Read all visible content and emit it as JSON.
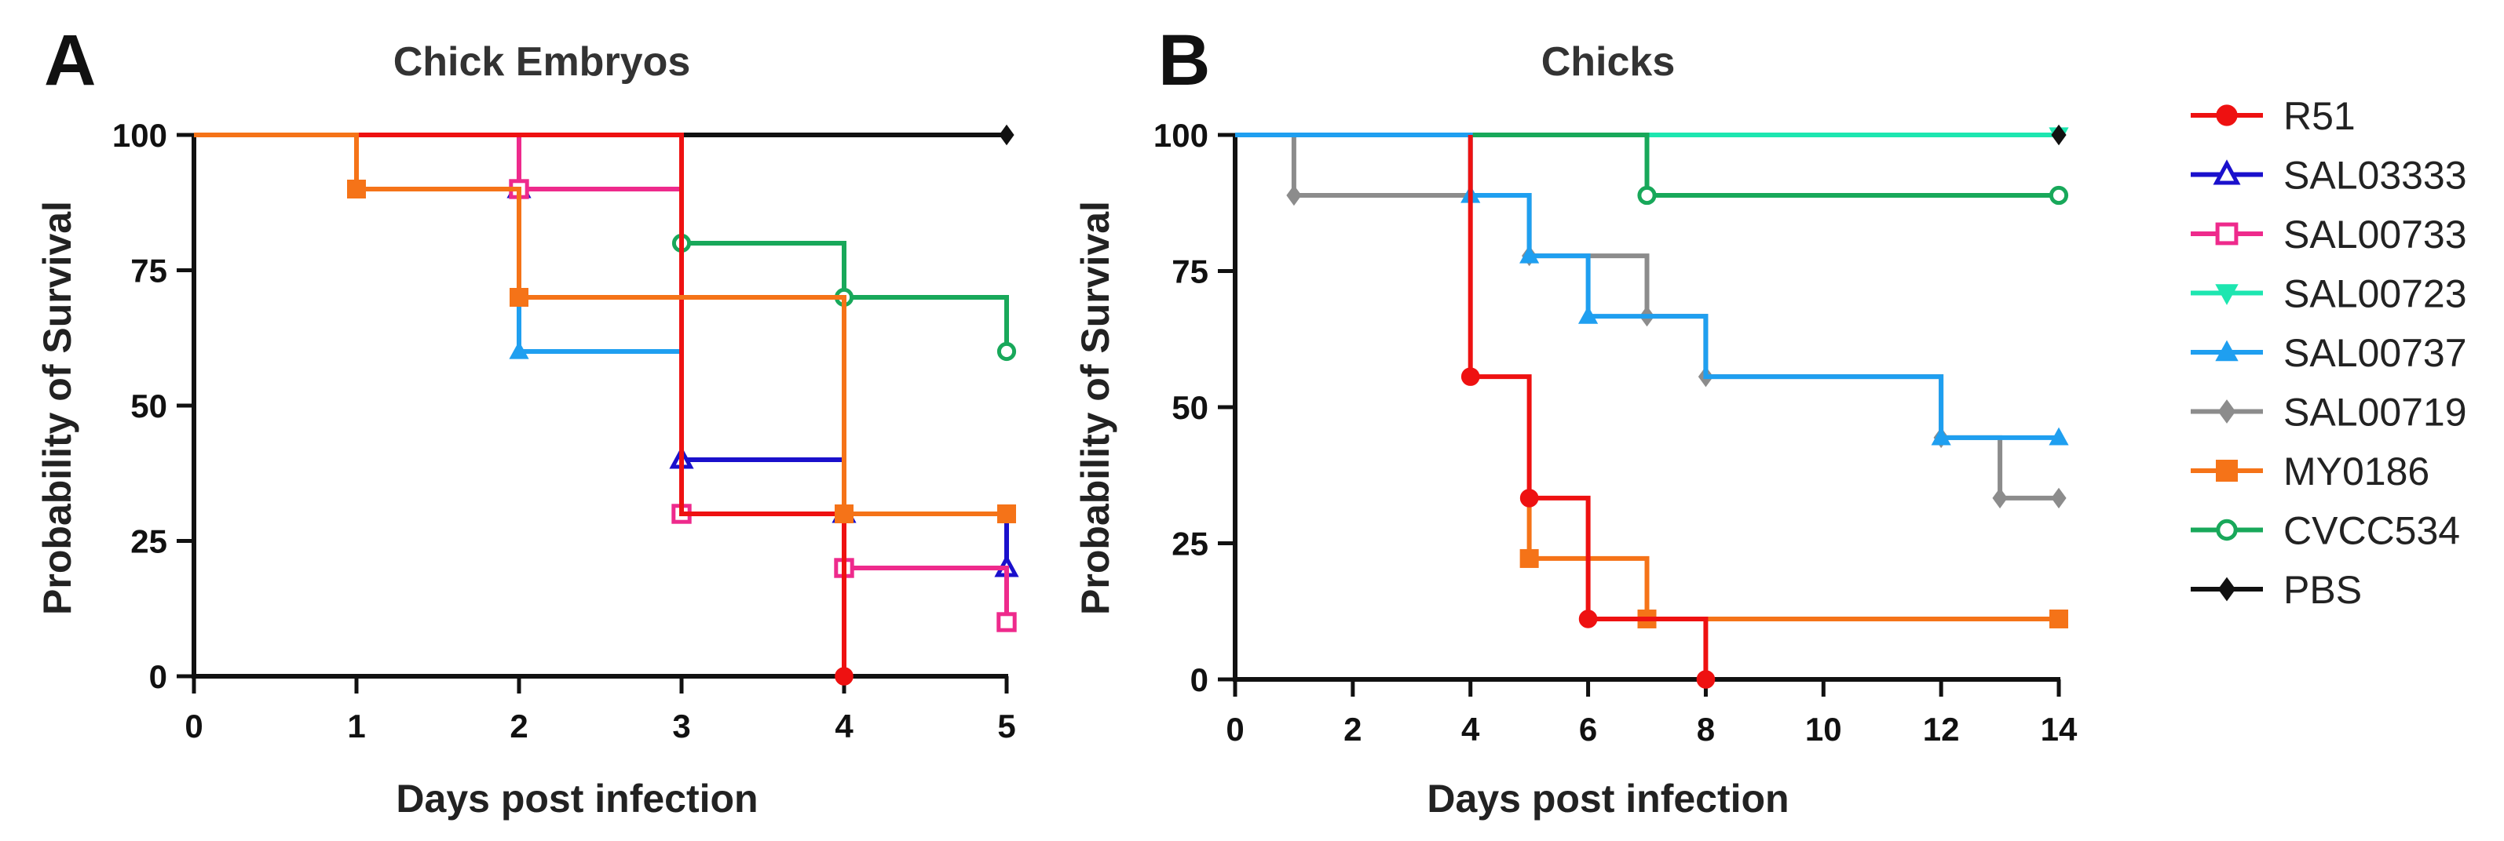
{
  "colors": {
    "R51": "#ee1111",
    "SAL03333": "#1a10cc",
    "SAL00733": "#ee2a8c",
    "SAL00723": "#1de6b0",
    "SAL00737": "#1f9ff0",
    "SAL00719": "#8c8c8c",
    "MY0186": "#f57318",
    "CVCC534": "#18a85a",
    "PBS": "#111111"
  },
  "legend": {
    "items": [
      {
        "label": "R51",
        "marker": "circle-filled"
      },
      {
        "label": "SAL03333",
        "marker": "triangle-open"
      },
      {
        "label": "SAL00733",
        "marker": "square-open"
      },
      {
        "label": "SAL00723",
        "marker": "triangle-down-filled"
      },
      {
        "label": "SAL00737",
        "marker": "triangle-filled"
      },
      {
        "label": "SAL00719",
        "marker": "diamond-filled"
      },
      {
        "label": "MY0186",
        "marker": "square-filled"
      },
      {
        "label": "CVCC534",
        "marker": "circle-open"
      },
      {
        "label": "PBS",
        "marker": "diamond-filled"
      }
    ]
  },
  "chart_data": [
    {
      "panel": "A",
      "type": "line",
      "subtype": "kaplan-meier",
      "title": "Chick Embryos",
      "xlabel": "Days post infection",
      "ylabel": "Probability of Survival",
      "xlim": [
        0,
        5
      ],
      "ylim": [
        0,
        100
      ],
      "xticks": [
        0,
        1,
        2,
        3,
        4,
        5
      ],
      "yticks": [
        0,
        25,
        50,
        75,
        100
      ],
      "series": [
        {
          "name": "PBS",
          "points": [
            [
              0,
              100
            ],
            [
              5,
              100
            ]
          ],
          "markers": [
            [
              5,
              100
            ]
          ]
        },
        {
          "name": "CVCC534",
          "points": [
            [
              0,
              100
            ],
            [
              3,
              100
            ],
            [
              3,
              80
            ],
            [
              4,
              80
            ],
            [
              4,
              70
            ],
            [
              5,
              70
            ],
            [
              5,
              60
            ]
          ],
          "markers": [
            [
              3,
              80
            ],
            [
              4,
              70
            ],
            [
              5,
              60
            ]
          ]
        },
        {
          "name": "SAL00737",
          "points": [
            [
              0,
              100
            ],
            [
              2,
              100
            ],
            [
              2,
              60
            ],
            [
              3,
              60
            ],
            [
              3,
              30
            ],
            [
              4,
              30
            ],
            [
              4,
              0
            ]
          ],
          "markers": [
            [
              2,
              60
            ],
            [
              3,
              30
            ],
            [
              4,
              30
            ]
          ]
        },
        {
          "name": "SAL03333",
          "points": [
            [
              0,
              100
            ],
            [
              2,
              100
            ],
            [
              2,
              90
            ],
            [
              3,
              90
            ],
            [
              3,
              40
            ],
            [
              4,
              40
            ],
            [
              4,
              30
            ],
            [
              5,
              30
            ],
            [
              5,
              20
            ]
          ],
          "markers": [
            [
              2,
              90
            ],
            [
              3,
              40
            ],
            [
              4,
              30
            ],
            [
              5,
              20
            ]
          ]
        },
        {
          "name": "SAL00733",
          "points": [
            [
              0,
              100
            ],
            [
              2,
              100
            ],
            [
              2,
              90
            ],
            [
              3,
              90
            ],
            [
              3,
              30
            ],
            [
              4,
              30
            ],
            [
              4,
              20
            ],
            [
              5,
              20
            ],
            [
              5,
              10
            ]
          ],
          "markers": [
            [
              2,
              90
            ],
            [
              3,
              30
            ],
            [
              4,
              20
            ],
            [
              5,
              10
            ]
          ]
        },
        {
          "name": "R51",
          "points": [
            [
              0,
              100
            ],
            [
              3,
              100
            ],
            [
              3,
              30
            ],
            [
              4,
              30
            ],
            [
              4,
              0
            ]
          ],
          "markers": [
            [
              4,
              0
            ]
          ]
        },
        {
          "name": "MY0186",
          "points": [
            [
              0,
              100
            ],
            [
              1,
              100
            ],
            [
              1,
              90
            ],
            [
              2,
              90
            ],
            [
              2,
              70
            ],
            [
              4,
              70
            ],
            [
              4,
              30
            ],
            [
              5,
              30
            ]
          ],
          "markers": [
            [
              1,
              90
            ],
            [
              2,
              70
            ],
            [
              4,
              30
            ],
            [
              5,
              30
            ]
          ]
        }
      ]
    },
    {
      "panel": "B",
      "type": "line",
      "subtype": "kaplan-meier",
      "title": "Chicks",
      "xlabel": "Days post infection",
      "ylabel": "Probability of Survival",
      "xlim": [
        0,
        14
      ],
      "ylim": [
        0,
        100
      ],
      "xticks": [
        0,
        2,
        4,
        6,
        8,
        10,
        12,
        14
      ],
      "yticks": [
        0,
        25,
        50,
        75,
        100
      ],
      "series": [
        {
          "name": "SAL00723",
          "points": [
            [
              0,
              100
            ],
            [
              14,
              100
            ]
          ],
          "markers": [
            [
              14,
              100
            ]
          ]
        },
        {
          "name": "PBS",
          "points": [
            [
              14,
              100
            ]
          ],
          "markers": [
            [
              14,
              100
            ]
          ]
        },
        {
          "name": "CVCC534",
          "points": [
            [
              0,
              100
            ],
            [
              7,
              100
            ],
            [
              7,
              88.9
            ],
            [
              14,
              88.9
            ]
          ],
          "markers": [
            [
              7,
              88.9
            ],
            [
              14,
              88.9
            ]
          ]
        },
        {
          "name": "SAL00719",
          "points": [
            [
              0,
              100
            ],
            [
              1,
              100
            ],
            [
              1,
              88.9
            ],
            [
              4,
              88.9
            ],
            [
              4,
              88.9
            ],
            [
              5,
              88.9
            ],
            [
              5,
              77.8
            ],
            [
              7,
              77.8
            ],
            [
              7,
              66.7
            ],
            [
              8,
              66.7
            ],
            [
              8,
              55.6
            ],
            [
              12,
              55.6
            ],
            [
              12,
              44.4
            ],
            [
              13,
              44.4
            ],
            [
              13,
              33.3
            ],
            [
              14,
              33.3
            ]
          ],
          "markers": [
            [
              1,
              88.9
            ],
            [
              5,
              77.8
            ],
            [
              7,
              66.7
            ],
            [
              8,
              55.6
            ],
            [
              12,
              44.4
            ],
            [
              13,
              33.3
            ],
            [
              14,
              33.3
            ]
          ]
        },
        {
          "name": "SAL00737",
          "points": [
            [
              0,
              100
            ],
            [
              4,
              100
            ],
            [
              4,
              88.9
            ],
            [
              5,
              88.9
            ],
            [
              5,
              77.8
            ],
            [
              6,
              77.8
            ],
            [
              6,
              66.7
            ],
            [
              7,
              66.7
            ],
            [
              8,
              66.7
            ],
            [
              8,
              55.6
            ],
            [
              12,
              55.6
            ],
            [
              12,
              44.4
            ],
            [
              14,
              44.4
            ]
          ],
          "markers": [
            [
              4,
              88.9
            ],
            [
              5,
              77.8
            ],
            [
              6,
              66.7
            ],
            [
              12,
              44.4
            ],
            [
              14,
              44.4
            ]
          ]
        },
        {
          "name": "MY0186",
          "points": [
            [
              5,
              33.3
            ],
            [
              5,
              22.2
            ],
            [
              7,
              22.2
            ],
            [
              7,
              11.1
            ],
            [
              14,
              11.1
            ]
          ],
          "markers": [
            [
              5,
              22.2
            ],
            [
              7,
              11.1
            ],
            [
              14,
              11.1
            ]
          ]
        },
        {
          "name": "R51",
          "points": [
            [
              4,
              100
            ],
            [
              4,
              55.6
            ],
            [
              5,
              55.6
            ],
            [
              5,
              33.3
            ],
            [
              6,
              33.3
            ],
            [
              6,
              11.1
            ],
            [
              8,
              11.1
            ],
            [
              8,
              0
            ]
          ],
          "markers": [
            [
              4,
              55.6
            ],
            [
              5,
              33.3
            ],
            [
              6,
              11.1
            ],
            [
              8,
              0
            ]
          ]
        }
      ]
    }
  ]
}
